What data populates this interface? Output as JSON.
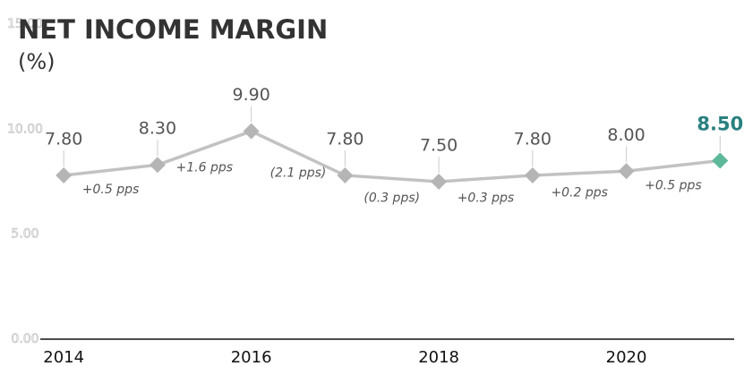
{
  "chart_data": {
    "type": "line",
    "title": "NET INCOME MARGIN",
    "subtitle": "(%)",
    "x": [
      2014,
      2015,
      2016,
      2017,
      2018,
      2019,
      2020,
      2021
    ],
    "series": [
      {
        "name": "Net income margin",
        "color": "#c2c2c2",
        "marker_color": "#b5b5b5",
        "highlight_color": "#5db99a",
        "highlight_label_color": "#2a8080",
        "values": [
          7.8,
          8.3,
          9.9,
          7.8,
          7.5,
          7.8,
          8.0,
          8.5
        ],
        "value_labels": [
          "7.80",
          "8.30",
          "9.90",
          "7.80",
          "7.50",
          "7.80",
          "8.00",
          "8.50"
        ]
      }
    ],
    "annotations": [
      "+0.5 pps",
      "+1.6 pps",
      "(2.1 pps)",
      "(0.3 pps)",
      "+0.3 pps",
      "+0.2 pps",
      "+0.5 pps"
    ],
    "xlim": [
      2013.75,
      2021.15
    ],
    "xticks": [
      2014,
      2016,
      2018,
      2020
    ],
    "ylim": [
      0,
      15
    ],
    "yticks": [
      {
        "value": 0,
        "label": "0.00"
      },
      {
        "value": 5,
        "label": "5.00"
      },
      {
        "value": 10,
        "label": "10.00"
      },
      {
        "value": 15,
        "label": "15.00"
      }
    ],
    "grid": false
  }
}
